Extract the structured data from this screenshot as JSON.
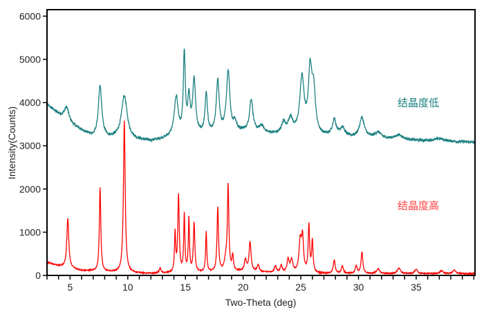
{
  "chart_data": {
    "type": "line",
    "title": "",
    "xlabel": "Two-Theta (deg)",
    "ylabel": "Intensity(Counts)",
    "xlim": [
      3,
      40.1
    ],
    "ylim": [
      0,
      6150
    ],
    "xticks": [
      5,
      10,
      15,
      20,
      25,
      30,
      35
    ],
    "xtick_labels": [
      "5",
      "10",
      "15",
      "20",
      "25",
      "30",
      "35"
    ],
    "x_minor_step": 1,
    "yticks": [
      0,
      1000,
      2000,
      3000,
      4000,
      5000,
      6000
    ],
    "ytick_labels": [
      "0",
      "1000",
      "2000",
      "3000",
      "4000",
      "5000",
      "6000"
    ],
    "grid": false,
    "legend": "none",
    "series": [
      {
        "name": "结晶度低",
        "color": "#1a7f7f",
        "baseline": [
          [
            3,
            3950
          ],
          [
            5,
            3500
          ],
          [
            7,
            3200
          ],
          [
            12,
            3100
          ],
          [
            14,
            3200
          ],
          [
            20,
            3320
          ],
          [
            23,
            3250
          ],
          [
            27,
            3200
          ],
          [
            31,
            3180
          ],
          [
            35,
            3120
          ],
          [
            40.1,
            3080
          ]
        ],
        "peaks": [
          [
            4.7,
            320,
            0.5
          ],
          [
            7.6,
            1180,
            0.35
          ],
          [
            9.7,
            1000,
            0.6
          ],
          [
            14.2,
            900,
            0.4
          ],
          [
            14.9,
            1850,
            0.2
          ],
          [
            15.3,
            800,
            0.25
          ],
          [
            15.75,
            1250,
            0.3
          ],
          [
            16.8,
            900,
            0.25
          ],
          [
            17.8,
            1200,
            0.3
          ],
          [
            18.7,
            1420,
            0.35
          ],
          [
            19.3,
            200,
            0.3
          ],
          [
            20.7,
            750,
            0.35
          ],
          [
            21.6,
            150,
            0.5
          ],
          [
            23.5,
            250,
            0.4
          ],
          [
            24.1,
            350,
            0.5
          ],
          [
            25.1,
            1300,
            0.45
          ],
          [
            25.8,
            1350,
            0.35
          ],
          [
            26.1,
            1000,
            0.4
          ],
          [
            27.9,
            380,
            0.4
          ],
          [
            28.6,
            200,
            0.5
          ],
          [
            30.3,
            450,
            0.5
          ],
          [
            31.7,
            130,
            0.6
          ],
          [
            33.5,
            100,
            0.8
          ],
          [
            37.0,
            60,
            1.0
          ]
        ],
        "label": "结晶度低"
      },
      {
        "name": "结晶度高",
        "color": "#ff0000",
        "baseline": [
          [
            3,
            300
          ],
          [
            4,
            220
          ],
          [
            6,
            110
          ],
          [
            8,
            80
          ],
          [
            12,
            40
          ],
          [
            14,
            50
          ],
          [
            20,
            90
          ],
          [
            22,
            70
          ],
          [
            27,
            40
          ],
          [
            33,
            40
          ],
          [
            40.1,
            40
          ]
        ],
        "peaks": [
          [
            4.8,
            1150,
            0.2
          ],
          [
            7.6,
            1950,
            0.15
          ],
          [
            9.7,
            3500,
            0.18
          ],
          [
            12.8,
            110,
            0.2
          ],
          [
            14.1,
            900,
            0.12
          ],
          [
            14.4,
            1780,
            0.15
          ],
          [
            14.9,
            1330,
            0.12
          ],
          [
            15.3,
            1230,
            0.12
          ],
          [
            15.75,
            1150,
            0.15
          ],
          [
            16.8,
            930,
            0.12
          ],
          [
            17.8,
            1480,
            0.15
          ],
          [
            18.5,
            250,
            0.3
          ],
          [
            18.7,
            1930,
            0.15
          ],
          [
            19.1,
            350,
            0.15
          ],
          [
            20.2,
            270,
            0.2
          ],
          [
            20.6,
            680,
            0.2
          ],
          [
            21.3,
            160,
            0.2
          ],
          [
            22.8,
            150,
            0.2
          ],
          [
            23.3,
            160,
            0.2
          ],
          [
            23.9,
            300,
            0.2
          ],
          [
            24.2,
            280,
            0.25
          ],
          [
            24.95,
            720,
            0.25
          ],
          [
            25.15,
            750,
            0.2
          ],
          [
            25.7,
            1080,
            0.15
          ],
          [
            26.0,
            720,
            0.15
          ],
          [
            27.9,
            300,
            0.2
          ],
          [
            28.6,
            170,
            0.2
          ],
          [
            29.8,
            180,
            0.2
          ],
          [
            30.3,
            490,
            0.18
          ],
          [
            31.7,
            110,
            0.3
          ],
          [
            33.5,
            130,
            0.3
          ],
          [
            35.0,
            90,
            0.3
          ],
          [
            37.2,
            70,
            0.3
          ],
          [
            38.3,
            80,
            0.3
          ]
        ],
        "label": "结晶度高"
      }
    ]
  }
}
